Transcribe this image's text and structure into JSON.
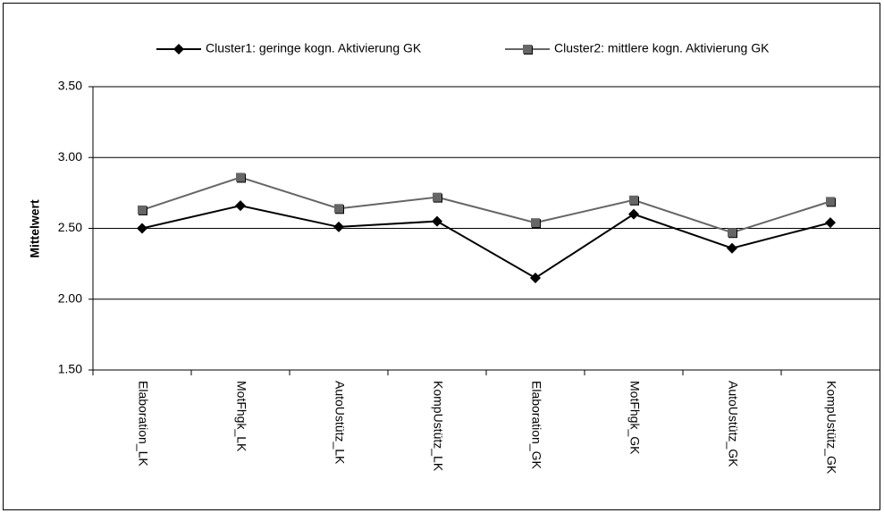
{
  "chart_data": {
    "type": "line",
    "y_label": "Mittelwert",
    "categories": [
      "Elaboration_LK",
      "MotFhgk_LK",
      "AutoUstütz_LK",
      "KompUstütz_LK",
      "Elaboration_GK",
      "MotFhgk_GK",
      "AutoUstütz_GK",
      "KompUstütz_GK"
    ],
    "series": [
      {
        "name": "Cluster1: geringe kogn. Aktivierung GK",
        "color": "#000000",
        "marker": "diamond",
        "values": [
          2.5,
          2.66,
          2.51,
          2.55,
          2.15,
          2.6,
          2.36,
          2.54
        ]
      },
      {
        "name": "Cluster2: mittlere kogn. Aktivierung GK",
        "color": "#666666",
        "marker": "square",
        "values": [
          2.63,
          2.86,
          2.64,
          2.72,
          2.54,
          2.7,
          2.47,
          2.69
        ]
      }
    ],
    "ylim": [
      1.5,
      3.5
    ],
    "yticks": [
      {
        "value": 1.5,
        "label": "1.50"
      },
      {
        "value": 2.0,
        "label": "2.00"
      },
      {
        "value": 2.5,
        "label": "2.50"
      },
      {
        "value": 3.0,
        "label": "3.00"
      },
      {
        "value": 3.5,
        "label": "3.50"
      }
    ],
    "grid": true,
    "legend": "top"
  }
}
